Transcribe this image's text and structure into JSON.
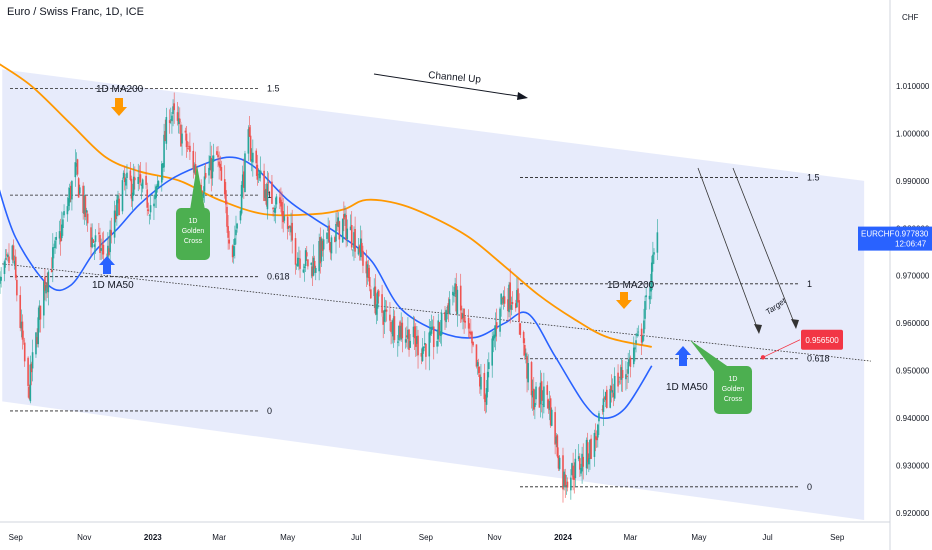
{
  "header": {
    "title": "Euro / Swiss Franc, 1D, ICE",
    "currency": "CHF"
  },
  "price_badge": {
    "symbol": "EURCHF",
    "price": "0.977830",
    "countdown": "12:06:47",
    "color": "#2962ff"
  },
  "target_badge": {
    "value": "0.956500",
    "color": "#f23645"
  },
  "annotations": {
    "channel": "Channel Up",
    "ma200_top": "1D MA200",
    "ma50_left": "1D MA50",
    "ma200_right": "1D MA200",
    "ma50_right": "1D MA50",
    "golden_cross_left": "1D\nGolden\nCross",
    "golden_cross_right": "1D\nGolden\nCross",
    "target": "Target"
  },
  "colors": {
    "up": "#26a69a",
    "down": "#ef5350",
    "ma50": "#2962ff",
    "ma200": "#ff9800",
    "channel": "#e3e8fa",
    "golden_cross": "#4caf50"
  },
  "chart_data": {
    "type": "candlestick",
    "title": "Euro / Swiss Franc, 1D, ICE",
    "y_axis": {
      "unit": "CHF",
      "range": [
        0.9185,
        1.0235
      ],
      "ticks": [
        "1.010000",
        "1.000000",
        "0.990000",
        "0.980000",
        "0.970000",
        "0.960000",
        "0.950000",
        "0.940000",
        "0.930000",
        "0.920000"
      ]
    },
    "x_axis": {
      "ticks": [
        "Sep",
        "Nov",
        "2023",
        "Mar",
        "May",
        "Jul",
        "Sep",
        "Nov",
        "2024",
        "Mar",
        "May",
        "Jul",
        "Sep"
      ],
      "bold_ticks": [
        "2023",
        "2024"
      ]
    },
    "fib_left": [
      {
        "level": "1.5",
        "price": 1.0095
      },
      {
        "level": "1",
        "price": 0.987
      },
      {
        "level": "0.618",
        "price": 0.9698
      },
      {
        "level": "0",
        "price": 0.9415
      }
    ],
    "fib_right": [
      {
        "level": "1.5",
        "price": 0.9907
      },
      {
        "level": "1",
        "price": 0.9683
      },
      {
        "level": "0.618",
        "price": 0.9525
      },
      {
        "level": "0",
        "price": 0.9255
      }
    ],
    "key_prices": {
      "last": 0.97783,
      "target": 0.9565
    },
    "path_keypoints": [
      [
        "2022-08-15",
        0.966
      ],
      [
        "2022-08-29",
        0.975
      ],
      [
        "2022-09-12",
        0.945
      ],
      [
        "2022-09-26",
        0.968
      ],
      [
        "2022-10-10",
        0.978
      ],
      [
        "2022-10-24",
        0.992
      ],
      [
        "2022-11-07",
        0.978
      ],
      [
        "2022-11-21",
        0.974
      ],
      [
        "2022-12-05",
        0.989
      ],
      [
        "2022-12-19",
        0.989
      ],
      [
        "2023-01-02",
        0.984
      ],
      [
        "2023-01-16",
        1.005
      ],
      [
        "2023-01-30",
        0.998
      ],
      [
        "2023-02-13",
        0.989
      ],
      [
        "2023-02-27",
        0.995
      ],
      [
        "2023-03-13",
        0.975
      ],
      [
        "2023-03-27",
        0.998
      ],
      [
        "2023-04-10",
        0.988
      ],
      [
        "2023-04-24",
        0.985
      ],
      [
        "2023-05-08",
        0.975
      ],
      [
        "2023-05-22",
        0.972
      ],
      [
        "2023-06-05",
        0.977
      ],
      [
        "2023-06-19",
        0.981
      ],
      [
        "2023-07-03",
        0.977
      ],
      [
        "2023-07-17",
        0.965
      ],
      [
        "2023-07-31",
        0.96
      ],
      [
        "2023-08-14",
        0.958
      ],
      [
        "2023-08-28",
        0.955
      ],
      [
        "2023-09-11",
        0.957
      ],
      [
        "2023-09-25",
        0.967
      ],
      [
        "2023-10-09",
        0.957
      ],
      [
        "2023-10-23",
        0.944
      ],
      [
        "2023-11-06",
        0.965
      ],
      [
        "2023-11-20",
        0.966
      ],
      [
        "2023-12-04",
        0.944
      ],
      [
        "2023-12-18",
        0.945
      ],
      [
        "2024-01-01",
        0.927
      ],
      [
        "2024-01-15",
        0.93
      ],
      [
        "2024-01-29",
        0.935
      ],
      [
        "2024-02-12",
        0.946
      ],
      [
        "2024-02-26",
        0.95
      ],
      [
        "2024-03-11",
        0.958
      ],
      [
        "2024-03-25",
        0.978
      ]
    ],
    "ma50_keypoints": [
      [
        "2022-08-15",
        0.99
      ],
      [
        "2022-09-01",
        0.978
      ],
      [
        "2022-09-30",
        0.968
      ],
      [
        "2022-10-20",
        0.968
      ],
      [
        "2022-11-10",
        0.975
      ],
      [
        "2022-12-01",
        0.98
      ],
      [
        "2022-12-20",
        0.985
      ],
      [
        "2023-01-15",
        0.99
      ],
      [
        "2023-02-10",
        0.993
      ],
      [
        "2023-03-10",
        0.995
      ],
      [
        "2023-04-01",
        0.993
      ],
      [
        "2023-05-01",
        0.986
      ],
      [
        "2023-05-25",
        0.982
      ],
      [
        "2023-06-20",
        0.978
      ],
      [
        "2023-07-15",
        0.973
      ],
      [
        "2023-08-10",
        0.963
      ],
      [
        "2023-09-15",
        0.958
      ],
      [
        "2023-10-15",
        0.957
      ],
      [
        "2023-11-10",
        0.96
      ],
      [
        "2023-12-01",
        0.962
      ],
      [
        "2023-12-25",
        0.953
      ],
      [
        "2024-01-20",
        0.943
      ],
      [
        "2024-02-05",
        0.94
      ],
      [
        "2024-02-25",
        0.942
      ],
      [
        "2024-03-20",
        0.951
      ]
    ],
    "ma200_keypoints": [
      [
        "2022-08-15",
        1.015
      ],
      [
        "2022-09-15",
        1.01
      ],
      [
        "2022-10-20",
        1.002
      ],
      [
        "2022-11-20",
        0.995
      ],
      [
        "2022-12-20",
        0.992
      ],
      [
        "2023-01-25",
        0.99
      ],
      [
        "2023-03-01",
        0.986
      ],
      [
        "2023-04-10",
        0.983
      ],
      [
        "2023-05-25",
        0.983
      ],
      [
        "2023-06-20",
        0.984
      ],
      [
        "2023-07-10",
        0.986
      ],
      [
        "2023-08-10",
        0.985
      ],
      [
        "2023-09-10",
        0.982
      ],
      [
        "2023-10-10",
        0.978
      ],
      [
        "2023-11-10",
        0.972
      ],
      [
        "2023-12-10",
        0.966
      ],
      [
        "2024-01-10",
        0.961
      ],
      [
        "2024-02-10",
        0.957
      ],
      [
        "2024-03-20",
        0.955
      ]
    ],
    "channel": {
      "top_line": [
        [
          "2022-08-20",
          1.0135
        ],
        [
          "2024-09-25",
          0.99
        ]
      ],
      "bottom_line": [
        [
          "2022-08-20",
          0.9435
        ],
        [
          "2024-09-25",
          0.9185
        ]
      ]
    },
    "trendline": [
      [
        "2022-08-20",
        0.9725
      ],
      [
        "2024-10-01",
        0.952
      ]
    ]
  }
}
